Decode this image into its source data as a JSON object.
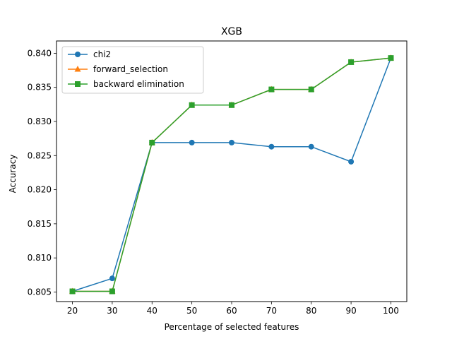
{
  "chart_data": {
    "type": "line",
    "title": "XGB",
    "xlabel": "Percentage of selected features",
    "ylabel": "Accuracy",
    "x": [
      20,
      30,
      40,
      50,
      60,
      70,
      80,
      90,
      100
    ],
    "xticks": [
      "20",
      "30",
      "40",
      "50",
      "60",
      "70",
      "80",
      "90",
      "100"
    ],
    "yticks": [
      "0.805",
      "0.810",
      "0.815",
      "0.820",
      "0.825",
      "0.830",
      "0.835",
      "0.840"
    ],
    "ylim": [
      0.8036,
      0.8418
    ],
    "xlim": [
      16,
      104
    ],
    "grid": false,
    "legend_position": "upper-left",
    "series": [
      {
        "name": "chi2",
        "color": "#1f77b4",
        "marker": "circle",
        "values": [
          0.8051,
          0.807,
          0.8269,
          0.8269,
          0.8269,
          0.8263,
          0.8263,
          0.8241,
          0.8393
        ]
      },
      {
        "name": "forward_selection",
        "color": "#ff7f0e",
        "marker": "triangle",
        "values": [
          0.8051,
          0.8051,
          0.8269,
          0.8324,
          0.8324,
          0.8347,
          0.8347,
          0.8387,
          0.8393
        ]
      },
      {
        "name": "backward elimination",
        "color": "#2ca02c",
        "marker": "square",
        "values": [
          0.8051,
          0.8051,
          0.8269,
          0.8324,
          0.8324,
          0.8347,
          0.8347,
          0.8387,
          0.8393
        ]
      }
    ]
  }
}
